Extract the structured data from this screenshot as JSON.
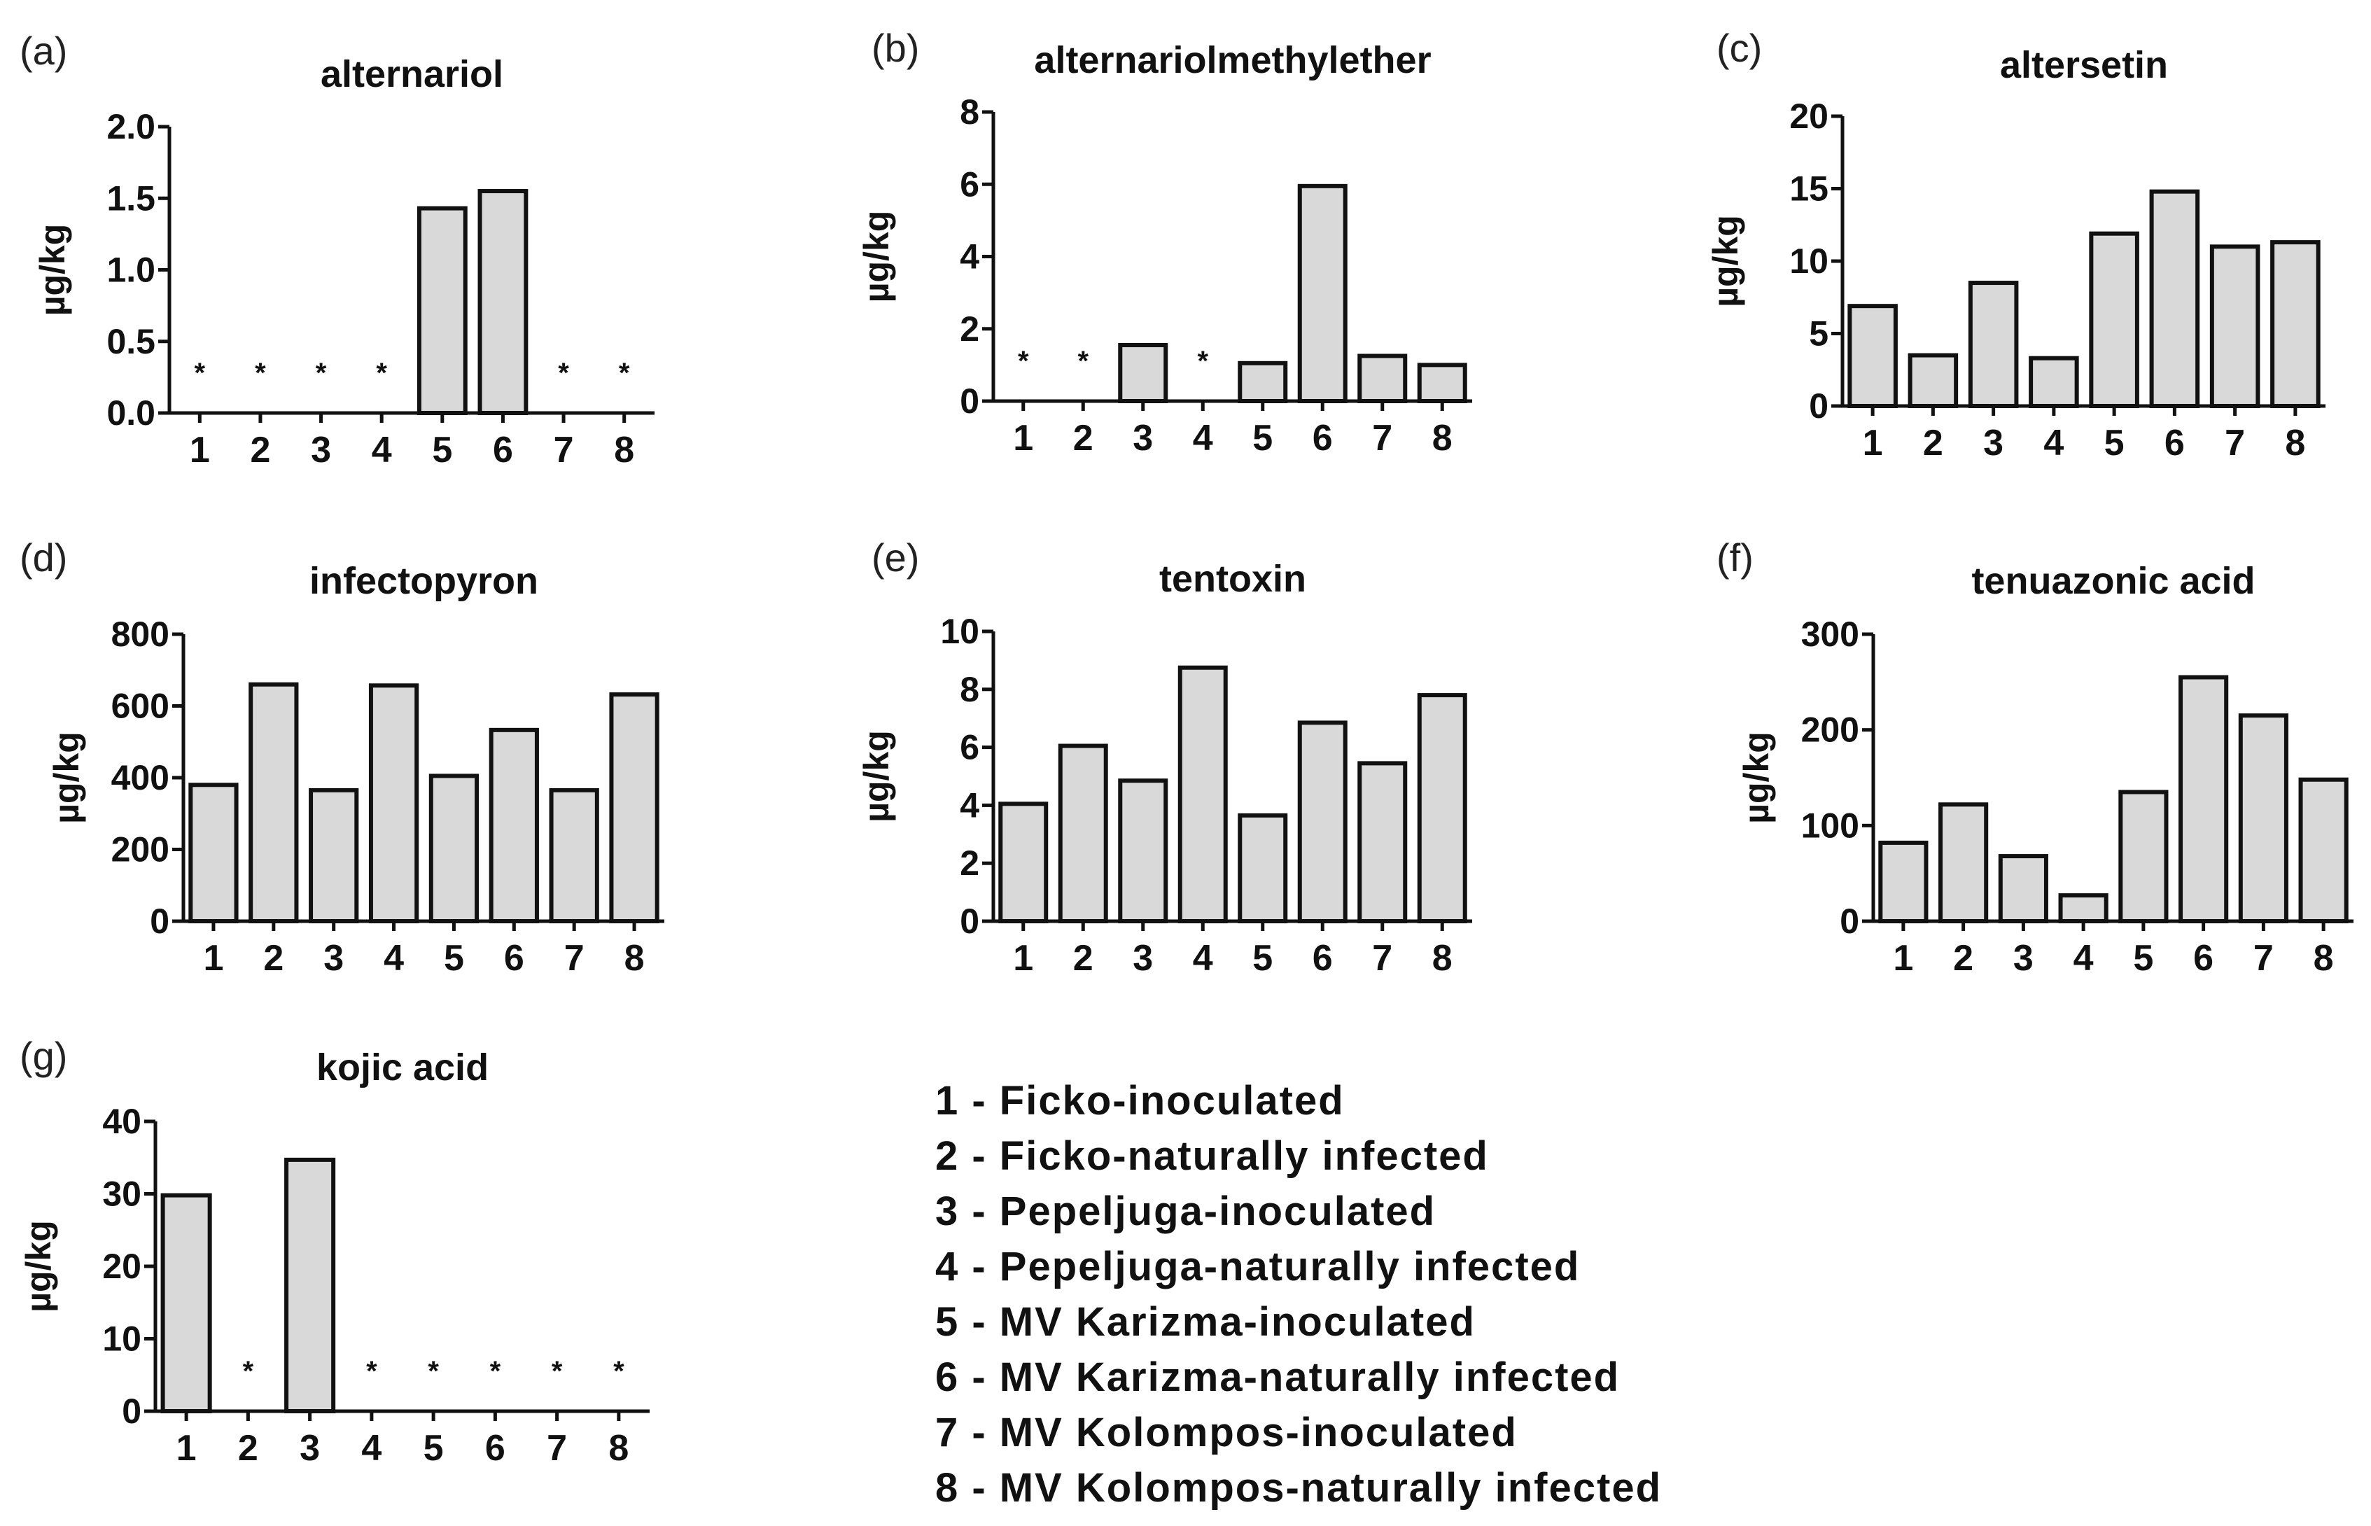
{
  "chart_data": [
    {
      "type": "bar",
      "panel_label": "(a)",
      "title": "alternariol",
      "ylabel": "µg/kg",
      "categories": [
        "1",
        "2",
        "3",
        "4",
        "5",
        "6",
        "7",
        "8"
      ],
      "values": [
        null,
        null,
        null,
        null,
        1.43,
        1.55,
        null,
        null
      ],
      "not_detected_marker": "*",
      "ylim": [
        0,
        2.0
      ],
      "yticks": [
        "0.0",
        "0.5",
        "1.0",
        "1.5",
        "2.0"
      ]
    },
    {
      "type": "bar",
      "panel_label": "(b)",
      "title": "alternariolmethylether",
      "ylabel": "µg/kg",
      "categories": [
        "1",
        "2",
        "3",
        "4",
        "5",
        "6",
        "7",
        "8"
      ],
      "values": [
        null,
        null,
        1.55,
        null,
        1.05,
        5.95,
        1.25,
        1.0
      ],
      "not_detected_marker": "*",
      "ylim": [
        0,
        8
      ],
      "yticks": [
        "0",
        "2",
        "4",
        "6",
        "8"
      ]
    },
    {
      "type": "bar",
      "panel_label": "(c)",
      "title": "altersetin",
      "ylabel": "µg/kg",
      "categories": [
        "1",
        "2",
        "3",
        "4",
        "5",
        "6",
        "7",
        "8"
      ],
      "values": [
        6.9,
        3.5,
        8.5,
        3.3,
        11.9,
        14.8,
        11.0,
        11.3
      ],
      "not_detected_marker": "*",
      "ylim": [
        0,
        20
      ],
      "yticks": [
        "0",
        "5",
        "10",
        "15",
        "20"
      ]
    },
    {
      "type": "bar",
      "panel_label": "(d)",
      "title": "infectopyron",
      "ylabel": "µg/kg",
      "categories": [
        "1",
        "2",
        "3",
        "4",
        "5",
        "6",
        "7",
        "8"
      ],
      "values": [
        380,
        660,
        365,
        657,
        405,
        533,
        365,
        632
      ],
      "not_detected_marker": "*",
      "ylim": [
        0,
        800
      ],
      "yticks": [
        "0",
        "200",
        "400",
        "600",
        "800"
      ]
    },
    {
      "type": "bar",
      "panel_label": "(e)",
      "title": "tentoxin",
      "ylabel": "µg/kg",
      "categories": [
        "1",
        "2",
        "3",
        "4",
        "5",
        "6",
        "7",
        "8"
      ],
      "values": [
        4.05,
        6.05,
        4.85,
        8.75,
        3.65,
        6.85,
        5.45,
        7.8
      ],
      "not_detected_marker": "*",
      "ylim": [
        0,
        10
      ],
      "yticks": [
        "0",
        "2",
        "4",
        "6",
        "8",
        "10"
      ]
    },
    {
      "type": "bar",
      "panel_label": "(f)",
      "title": "tenuazonic acid",
      "ylabel": "µg/kg",
      "categories": [
        "1",
        "2",
        "3",
        "4",
        "5",
        "6",
        "7",
        "8"
      ],
      "values": [
        82,
        122,
        68,
        27,
        135,
        255,
        215,
        148
      ],
      "not_detected_marker": "*",
      "ylim": [
        0,
        300
      ],
      "yticks": [
        "0",
        "100",
        "200",
        "300"
      ]
    },
    {
      "type": "bar",
      "panel_label": "(g)",
      "title": "kojic acid",
      "ylabel": "µg/kg",
      "categories": [
        "1",
        "2",
        "3",
        "4",
        "5",
        "6",
        "7",
        "8"
      ],
      "values": [
        29.8,
        null,
        34.7,
        null,
        null,
        null,
        null,
        null
      ],
      "not_detected_marker": "*",
      "ylim": [
        0,
        40
      ],
      "yticks": [
        "0",
        "10",
        "20",
        "30",
        "40"
      ]
    }
  ],
  "legend": [
    "1 - Ficko-inoculated",
    "2 - Ficko-naturally infected",
    "3 - Pepeljuga-inoculated",
    "4 - Pepeljuga-naturally infected",
    "5 - MV Karizma-inoculated",
    "6 - MV Karizma-naturally infected",
    "7 - MV Kolompos-inoculated",
    "8 - MV Kolompos-naturally infected"
  ]
}
